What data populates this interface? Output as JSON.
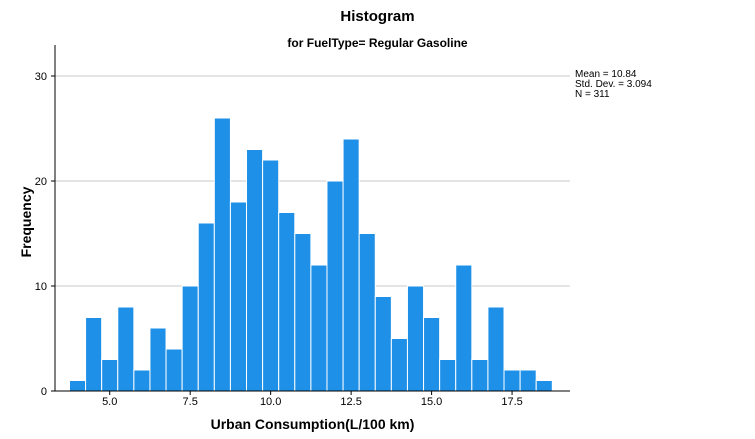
{
  "chart_data": {
    "type": "bar",
    "title": "Histogram",
    "subtitle": "for FuelType= Regular Gasoline",
    "xlabel": "Urban Consumption(L/100 km)",
    "ylabel": "Frequency",
    "bin_start": 3.75,
    "bin_width": 0.5,
    "values": [
      1,
      7,
      3,
      8,
      2,
      6,
      4,
      10,
      16,
      26,
      18,
      23,
      22,
      17,
      15,
      12,
      20,
      24,
      15,
      9,
      5,
      10,
      7,
      3,
      12,
      3,
      8,
      2,
      2,
      1
    ],
    "xlim": [
      3.3,
      19.3
    ],
    "ylim": [
      0,
      32
    ],
    "x_ticks": [
      5.0,
      7.5,
      10.0,
      12.5,
      15.0,
      17.5
    ],
    "x_tick_labels": [
      "5.0",
      "7.5",
      "10.0",
      "12.5",
      "15.0",
      "17.5"
    ],
    "y_ticks": [
      0,
      10,
      20,
      30
    ],
    "y_tick_labels": [
      "0",
      "10",
      "20",
      "30"
    ],
    "grid": true,
    "bar_color": "#1e90e8",
    "stats": {
      "mean": "Mean = 10.84",
      "std_dev": "Std. Dev. = 3.094",
      "n": "N = 311"
    }
  }
}
